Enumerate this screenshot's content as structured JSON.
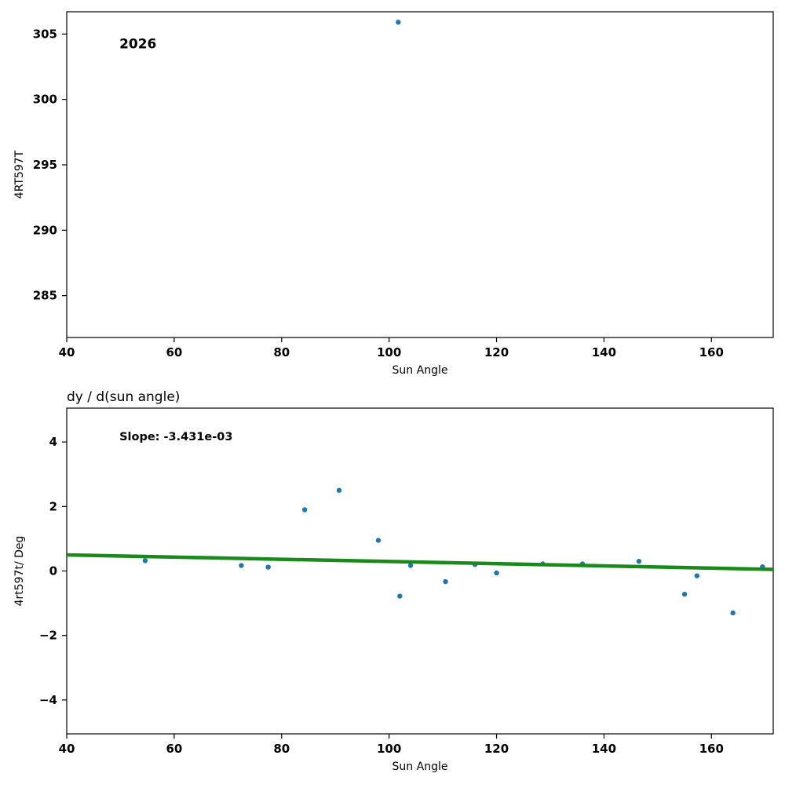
{
  "figure": {
    "background": "#ffffff",
    "point_color": "#1f77b4",
    "fit_line_color": "#1a8a1a"
  },
  "chart_data": [
    {
      "type": "scatter",
      "title": "",
      "xlabel": "Sun Angle",
      "ylabel": "4RT597T",
      "xlim": [
        40,
        171.5
      ],
      "ylim": [
        281.8,
        306.7
      ],
      "xticks": [
        40,
        60,
        80,
        100,
        120,
        140,
        160
      ],
      "yticks": [
        285,
        290,
        295,
        300,
        305
      ],
      "grid": false,
      "legend": null,
      "annotations": [
        {
          "text": "2026",
          "x": 49.8,
          "y": 303.9,
          "size": 17
        }
      ],
      "series": [
        {
          "name": "temperature-points",
          "kind": "scatter",
          "color": "#1f77b4",
          "points": [
            [
              101.7,
              305.9
            ]
          ]
        }
      ]
    },
    {
      "type": "scatter",
      "title": "dy / d(sun angle)",
      "xlabel": "Sun Angle",
      "ylabel": "4rt597t/ Deg",
      "xlim": [
        40,
        171.5
      ],
      "ylim": [
        -5.05,
        5.05
      ],
      "xticks": [
        40,
        60,
        80,
        100,
        120,
        140,
        160
      ],
      "yticks": [
        -4,
        -2,
        0,
        2,
        4
      ],
      "grid": false,
      "legend": null,
      "annotations": [
        {
          "text": "Slope: -3.431e-03",
          "x": 49.8,
          "y": 4.05,
          "size": 14.5
        }
      ],
      "series": [
        {
          "name": "derivative-points",
          "kind": "scatter",
          "color": "#1f77b4",
          "points": [
            [
              54.6,
              0.32
            ],
            [
              72.5,
              0.17
            ],
            [
              77.5,
              0.12
            ],
            [
              84.3,
              1.9
            ],
            [
              90.7,
              2.5
            ],
            [
              98.0,
              0.95
            ],
            [
              102.0,
              -0.78
            ],
            [
              104.0,
              0.17
            ],
            [
              110.5,
              -0.33
            ],
            [
              116.0,
              0.2
            ],
            [
              120.0,
              -0.06
            ],
            [
              128.6,
              0.22
            ],
            [
              136.0,
              0.22
            ],
            [
              146.5,
              0.3
            ],
            [
              155.0,
              -0.72
            ],
            [
              157.3,
              -0.15
            ],
            [
              164.0,
              -1.3
            ],
            [
              169.5,
              0.13
            ]
          ]
        },
        {
          "name": "linear-fit",
          "kind": "line",
          "color": "#1a8a1a",
          "width": 4.5,
          "slope": "-3.431e-03",
          "points": [
            [
              40,
              0.5
            ],
            [
              171.5,
              0.049
            ]
          ]
        }
      ]
    }
  ]
}
